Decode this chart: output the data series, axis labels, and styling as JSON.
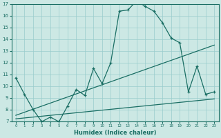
{
  "xlabel": "Humidex (Indice chaleur)",
  "bg_color": "#cce8e4",
  "line_color": "#1a6e64",
  "grid_color": "#99cccc",
  "xlim": [
    -0.5,
    23.5
  ],
  "ylim": [
    7,
    17
  ],
  "xticks": [
    0,
    1,
    2,
    3,
    4,
    5,
    6,
    7,
    8,
    9,
    10,
    11,
    12,
    13,
    14,
    15,
    16,
    17,
    18,
    19,
    20,
    21,
    22,
    23
  ],
  "yticks": [
    7,
    8,
    9,
    10,
    11,
    12,
    13,
    14,
    15,
    16,
    17
  ],
  "line1_x": [
    0,
    1,
    2,
    3,
    4,
    5,
    6,
    7,
    8,
    9,
    10,
    11,
    12,
    13,
    14,
    15,
    16,
    17,
    18,
    19,
    20,
    21,
    22,
    23
  ],
  "line1_y": [
    10.7,
    9.3,
    8.0,
    6.95,
    7.35,
    6.95,
    8.3,
    9.7,
    9.2,
    11.5,
    10.2,
    12.0,
    16.4,
    16.5,
    17.3,
    16.8,
    16.4,
    15.4,
    14.1,
    13.7,
    9.5,
    11.7,
    9.3,
    9.5
  ],
  "line2_x": [
    0,
    23
  ],
  "line2_y": [
    7.5,
    13.5
  ],
  "line3_x": [
    0,
    23
  ],
  "line3_y": [
    7.2,
    8.9
  ]
}
